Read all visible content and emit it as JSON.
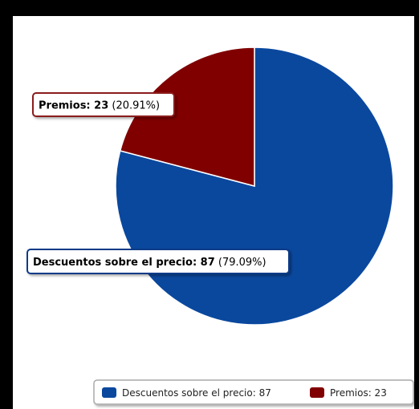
{
  "chart_data": {
    "type": "pie",
    "series": [
      {
        "name": "",
        "slices": [
          {
            "label": "Descuentos sobre el precio",
            "value": 87,
            "percent": "79.09%",
            "color": "#0a489e",
            "label_border": "#0a3a88",
            "legend_text": "Descuentos sobre el precio: 87"
          },
          {
            "label": "Premios",
            "value": 23,
            "percent": "20.91%",
            "color": "#800000",
            "label_border": "#8b1a1a",
            "legend_text": "Premios: 23"
          }
        ]
      }
    ],
    "legend": {
      "placement": "bottom-right"
    }
  }
}
